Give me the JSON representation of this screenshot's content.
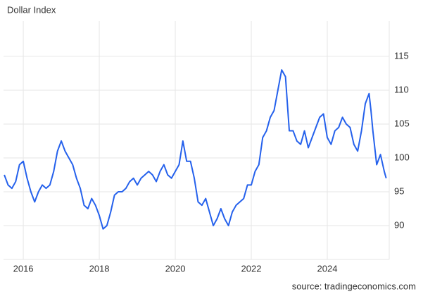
{
  "chart_data": {
    "type": "line",
    "title": "Dollar Index",
    "source": "source: tradingeconomics.com",
    "x": [
      2015.5,
      2015.6,
      2015.7,
      2015.8,
      2015.9,
      2016.0,
      2016.1,
      2016.2,
      2016.3,
      2016.4,
      2016.5,
      2016.6,
      2016.7,
      2016.8,
      2016.9,
      2017.0,
      2017.1,
      2017.2,
      2017.3,
      2017.4,
      2017.5,
      2017.6,
      2017.7,
      2017.8,
      2017.9,
      2018.0,
      2018.1,
      2018.2,
      2018.3,
      2018.4,
      2018.5,
      2018.6,
      2018.7,
      2018.8,
      2018.9,
      2019.0,
      2019.1,
      2019.2,
      2019.3,
      2019.4,
      2019.5,
      2019.6,
      2019.7,
      2019.8,
      2019.9,
      2020.0,
      2020.1,
      2020.2,
      2020.3,
      2020.4,
      2020.5,
      2020.6,
      2020.7,
      2020.8,
      2020.9,
      2021.0,
      2021.1,
      2021.2,
      2021.3,
      2021.4,
      2021.5,
      2021.6,
      2021.7,
      2021.8,
      2021.9,
      2022.0,
      2022.1,
      2022.2,
      2022.3,
      2022.4,
      2022.5,
      2022.6,
      2022.7,
      2022.8,
      2022.9,
      2023.0,
      2023.1,
      2023.2,
      2023.3,
      2023.4,
      2023.5,
      2023.6,
      2023.7,
      2023.8,
      2023.9,
      2024.0,
      2024.1,
      2024.2,
      2024.3,
      2024.4,
      2024.5,
      2024.6,
      2024.7,
      2024.8,
      2024.9,
      2025.0,
      2025.1,
      2025.15,
      2025.2,
      2025.3,
      2025.4,
      2025.5,
      2025.55
    ],
    "series": [
      {
        "name": "Dollar Index",
        "color": "#2561ec",
        "values": [
          97.5,
          96,
          95.5,
          96.5,
          99,
          99.5,
          97,
          95,
          93.5,
          95,
          96,
          95.5,
          96,
          98,
          101,
          102.5,
          101,
          100,
          99,
          97,
          95.5,
          93,
          92.5,
          94,
          93,
          91.5,
          89.5,
          90,
          92,
          94.5,
          95,
          95,
          95.5,
          96.5,
          97,
          96,
          97,
          97.5,
          98,
          97.5,
          96.5,
          98,
          99,
          97.5,
          97,
          98,
          99,
          102.5,
          99.5,
          99.5,
          97,
          93.5,
          93,
          94,
          92,
          90,
          91,
          92.5,
          91,
          90,
          92,
          93,
          93.5,
          94,
          96,
          96,
          98,
          99,
          103,
          104,
          106,
          107,
          110,
          113,
          112,
          104,
          104,
          102.5,
          102,
          104,
          101.5,
          103,
          104.5,
          106,
          106.5,
          103,
          102,
          104,
          104.5,
          106,
          105,
          104.5,
          102,
          101,
          104,
          108,
          109.5,
          107,
          104,
          99,
          100.5,
          98,
          97
        ]
      }
    ],
    "xlim": [
      2015.48,
      2025.63
    ],
    "ylim": [
      85,
      120.2
    ],
    "xticks": [
      2016,
      2018,
      2020,
      2022,
      2024
    ],
    "yticks": [
      90,
      95,
      100,
      105,
      110,
      115
    ],
    "grid": true
  }
}
